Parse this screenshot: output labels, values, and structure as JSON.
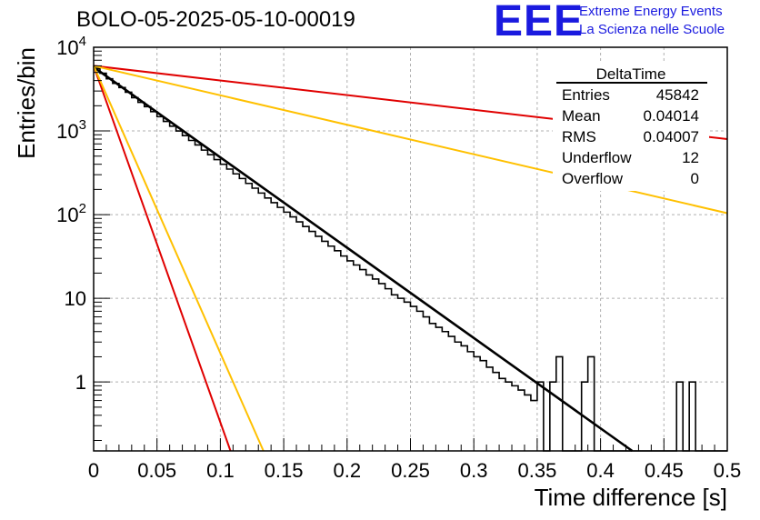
{
  "header": {
    "title": "BOLO-05-2025-05-10-00019",
    "logo_text": "EEE",
    "logo_line1": "Extreme Energy Events",
    "logo_line2": "La Scienza nelle Scuole",
    "logo_color": "#1a1adf"
  },
  "stats_box": {
    "name": "DeltaTime",
    "rows": [
      {
        "label": "Entries",
        "value": "45842"
      },
      {
        "label": "Mean",
        "value": "0.04014"
      },
      {
        "label": "RMS",
        "value": "0.04007"
      },
      {
        "label": "Underflow",
        "value": "12"
      },
      {
        "label": "Overflow",
        "value": "0"
      }
    ]
  },
  "chart_data": {
    "type": "line",
    "xlabel": "Time difference [s]",
    "ylabel": "Entries/bin",
    "xlim": [
      0,
      0.5
    ],
    "ylim": [
      0.15,
      10000
    ],
    "y_scale": "log",
    "grid": true,
    "x_ticks": [
      "0",
      "0.05",
      "0.1",
      "0.15",
      "0.2",
      "0.25",
      "0.3",
      "0.35",
      "0.4",
      "0.45",
      "0.5"
    ],
    "y_ticks": [
      {
        "value": 1,
        "base": "1",
        "exp": ""
      },
      {
        "value": 10,
        "base": "10",
        "exp": ""
      },
      {
        "value": 100,
        "base": "10",
        "exp": "2"
      },
      {
        "value": 1000,
        "base": "10",
        "exp": "3"
      },
      {
        "value": 10000,
        "base": "10",
        "exp": "4"
      }
    ],
    "histogram": {
      "color": "#000000",
      "bin_width": 0.005,
      "counts": [
        5600,
        4900,
        4200,
        3700,
        3300,
        2900,
        2500,
        2200,
        1950,
        1700,
        1480,
        1300,
        1140,
        1000,
        880,
        770,
        680,
        590,
        520,
        455,
        400,
        350,
        307,
        270,
        236,
        207,
        181,
        158,
        139,
        122,
        107,
        94,
        82,
        72,
        63,
        55,
        48,
        42,
        37,
        32,
        28,
        25,
        22,
        19,
        17,
        15,
        13,
        11,
        10,
        9,
        8,
        7,
        6,
        5,
        4.5,
        4,
        3.5,
        3,
        2.7,
        2.3,
        2,
        1.8,
        1.5,
        1.3,
        1.1,
        1,
        0.9,
        0.8,
        0.7,
        0.6,
        1,
        0,
        1,
        2,
        0,
        0,
        0,
        1,
        2,
        0,
        0,
        0,
        0,
        0,
        0,
        0,
        0,
        0,
        0,
        0,
        0,
        0,
        1,
        0,
        1,
        0,
        0,
        0,
        0,
        0
      ]
    },
    "series": [
      {
        "color": "#000000",
        "x": [
          0,
          0.425
        ],
        "y": [
          5800,
          0.15
        ]
      },
      {
        "color": "#e00000",
        "x": [
          0,
          0.5
        ],
        "y": [
          6000,
          800
        ]
      },
      {
        "color": "#ffc000",
        "x": [
          0,
          0.5
        ],
        "y": [
          6000,
          104
        ]
      },
      {
        "color": "#e00000",
        "x": [
          0,
          0.108
        ],
        "y": [
          6000,
          0.15
        ]
      },
      {
        "color": "#ffc000",
        "x": [
          0,
          0.134
        ],
        "y": [
          6000,
          0.15
        ]
      }
    ]
  }
}
